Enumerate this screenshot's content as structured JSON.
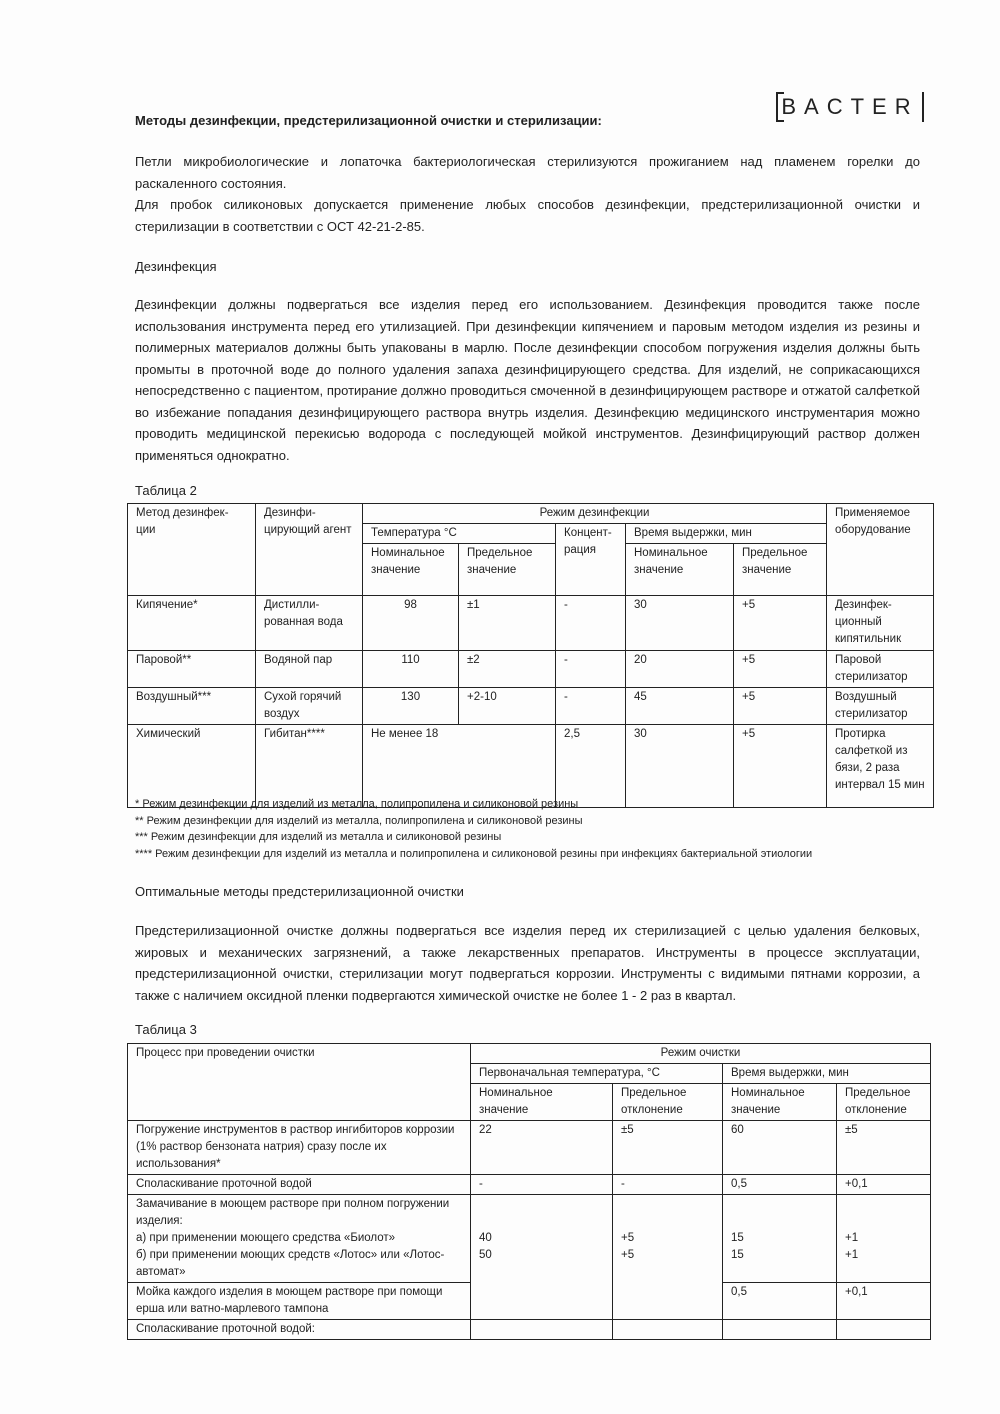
{
  "logo": "BACTER",
  "title": "Методы дезинфекции, предстерилизационной очистки и стерилизации:",
  "intro": [
    "Петли микробиологические и лопаточка бактериологическая стерилизуются прожиганием над пламенем горелки до раскаленного состояния.",
    "Для пробок силиконовых допускается применение любых способов дезинфекции, предстерилизационной очистки и стерилизации в соответствии с ОСТ 42-21-2-85."
  ],
  "disinfection": {
    "heading": "Дезинфекция",
    "text": "Дезинфекции должны подвергаться все изделия перед его использованием. Дезинфекция проводится также после использования инструмента перед его утилизацией. При дезинфекции кипячением и паровым методом изделия из резины и полимерных материалов должны быть упакованы в марлю. После дезинфекции способом погружения изделия должны быть промыты в проточной воде до полного удаления запаха дезинфицирующего средства. Для изделий, не соприкасающихся непосредственно с пациентом, протирание должно проводиться смоченной в дезинфицирующем растворе и отжатой салфеткой во избежание попадания дезинфицирующего раствора внутрь изделия.  Дезинфекцию медицинского инструментария можно проводить медицинской перекисью водорода с последующей мойкой инструментов. Дезинфицирующий раствор должен применяться однократно."
  },
  "table2": {
    "caption": "Таблица 2",
    "h": {
      "method": "Метод дезинфек-ции",
      "agent": "Дезинфи-цирующий агент",
      "regime": "Режим дезинфекции",
      "temp": "Температура °С",
      "conc": "Концент-рация",
      "time": "Время выдержки, мин",
      "equip": "Применяемое оборудование",
      "nom": "Номинальное значение",
      "lim": "Предельное значение"
    },
    "rows": [
      {
        "method": "Кипячение*",
        "agent": "Дистилли-рованная вода",
        "tnom": "98",
        "tlim": "±1",
        "conc": "-",
        "mnom": "30",
        "mlim": "+5",
        "equip": "Дезинфек-ционный кипятильник"
      },
      {
        "method": "Паровой**",
        "agent": "Водяной пар",
        "tnom": "110",
        "tlim": "±2",
        "conc": "-",
        "mnom": "20",
        "mlim": "+5",
        "equip": "Паровой стерилизатор"
      },
      {
        "method": "Воздушный***",
        "agent": "Сухой горячий воздух",
        "tnom": "130",
        "tlim": "+2-10",
        "conc": "-",
        "mnom": "45",
        "mlim": "+5",
        "equip": "Воздушный стерилизатор"
      },
      {
        "method": "Химический",
        "agent": "Гибитан****",
        "temp": "Не менее 18",
        "conc": "2,5",
        "mnom": "30",
        "mlim": "+5",
        "equip": "Протирка салфеткой из бязи, 2 раза интервал 15 мин"
      }
    ],
    "footnotes": [
      "* Режим дезинфекции для изделий из металла, полипропилена и силиконовой резины",
      "** Режим дезинфекции для изделий из металла, полипропилена и силиконовой резины",
      "*** Режим дезинфекции для изделий из металла и силиконовой резины",
      "**** Режим дезинфекции для изделий из металла и полипропилена и силиконовой резины  при инфекциях бактериальной этиологии"
    ]
  },
  "cleaning": {
    "heading": "Оптимальные методы предстерилизационной очистки",
    "text": "Предстерилизационной очистке должны подвергаться все изделия перед их стерилизацией с целью удаления белковых, жировых и механических загрязнений, а также лекарственных препаратов. Инструменты в процессе эксплуатации, предстерилизационной очистки, стерилизации могут подвергаться коррозии. Инструменты с видимыми пятнами коррозии, а также с наличием оксидной пленки подвергаются химической очистке не более 1 - 2 раз в квартал."
  },
  "table3": {
    "caption": "Таблица 3",
    "h": {
      "process": "Процесс при проведении очистки",
      "regime": "Режим очистки",
      "temp": "Первоначальная температура, °С",
      "time": "Время выдержки, мин",
      "nom": "Номинальное значение",
      "dev": "Предельное отклонение"
    },
    "rows": [
      {
        "process": "Погружение  инструментов в раствор ингибиторов коррозии (1% раствор бензоната натрия) сразу после их использования*",
        "tnom": "22",
        "tdev": "±5",
        "mnom": "60",
        "mdev": "±5"
      },
      {
        "process": "Споласкивание проточной водой",
        "tnom": "-",
        "tdev": "-",
        "mnom": "0,5",
        "mdev": "+0,1"
      },
      {
        "process": [
          "Замачивание в моющем растворе при полном погружении изделия:",
          "а) при применении моющего средства «Биолот»",
          "б) при применении моющих средств «Лотос» или «Лотос-автомат»"
        ],
        "tnom": [
          "40",
          "50"
        ],
        "tdev": [
          "+5",
          "+5"
        ],
        "mnom": [
          "15",
          "15"
        ],
        "mdev": [
          "+1",
          "+1"
        ]
      },
      {
        "process": "Мойка каждого изделия в моющем растворе при помощи ерша или ватно-марлевого тампона",
        "mnom": "0,5",
        "mdev": "+0,1"
      },
      {
        "process": "Споласкивание проточной водой:"
      }
    ]
  }
}
